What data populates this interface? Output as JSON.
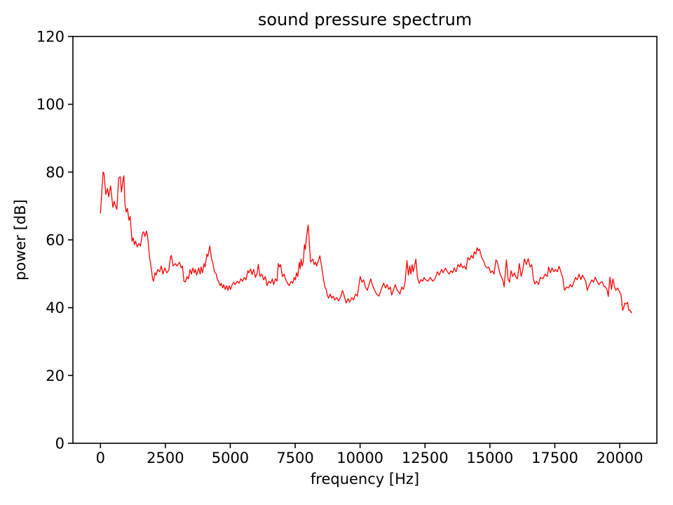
{
  "figure": {
    "title": "sound pressure spectrum"
  },
  "chart_data": {
    "type": "line",
    "title": "sound pressure spectrum",
    "xlabel": "frequency [Hz]",
    "ylabel": "power [dB]",
    "xlim": [
      -1060,
      21430
    ],
    "ylim": [
      0,
      120
    ],
    "xticks": [
      0,
      2500,
      5000,
      7500,
      10000,
      12500,
      15000,
      17500,
      20000
    ],
    "yticks": [
      0,
      20,
      40,
      60,
      80,
      100,
      120
    ],
    "grid": false,
    "legend": "none",
    "line_color": "#ff0000",
    "axes_color": "#000000",
    "background": "#ffffff",
    "points": [
      [
        0,
        67.9
      ],
      [
        100,
        80.0
      ],
      [
        135,
        79.6
      ],
      [
        208,
        73.4
      ],
      [
        270,
        75.2
      ],
      [
        316,
        72.7
      ],
      [
        389,
        75.9
      ],
      [
        478,
        69.6
      ],
      [
        524,
        71.4
      ],
      [
        568,
        70.3
      ],
      [
        632,
        69.0
      ],
      [
        703,
        78.3
      ],
      [
        768,
        78.6
      ],
      [
        811,
        74.1
      ],
      [
        876,
        78.1
      ],
      [
        903,
        78.9
      ],
      [
        947,
        70.3
      ],
      [
        992,
        68.2
      ],
      [
        1037,
        69.3
      ],
      [
        1100,
        65.8
      ],
      [
        1145,
        66.9
      ],
      [
        1216,
        59.6
      ],
      [
        1260,
        60.6
      ],
      [
        1308,
        58.6
      ],
      [
        1352,
        59.6
      ],
      [
        1417,
        57.9
      ],
      [
        1486,
        58.9
      ],
      [
        1540,
        58.2
      ],
      [
        1622,
        62.0
      ],
      [
        1667,
        62.4
      ],
      [
        1712,
        61.0
      ],
      [
        1775,
        62.6
      ],
      [
        1830,
        60.3
      ],
      [
        1892,
        54.8
      ],
      [
        1938,
        52.7
      ],
      [
        2011,
        48.5
      ],
      [
        2046,
        47.8
      ],
      [
        2100,
        50.3
      ],
      [
        2146,
        49.6
      ],
      [
        2208,
        51.3
      ],
      [
        2281,
        50.6
      ],
      [
        2344,
        52.3
      ],
      [
        2406,
        49.9
      ],
      [
        2479,
        51.7
      ],
      [
        2552,
        50.3
      ],
      [
        2630,
        51.0
      ],
      [
        2703,
        55.1
      ],
      [
        2730,
        55.4
      ],
      [
        2795,
        52.3
      ],
      [
        2884,
        53.0
      ],
      [
        2950,
        52.3
      ],
      [
        3047,
        53.4
      ],
      [
        3110,
        51.7
      ],
      [
        3160,
        52.3
      ],
      [
        3217,
        47.8
      ],
      [
        3271,
        47.6
      ],
      [
        3335,
        49.2
      ],
      [
        3390,
        48.5
      ],
      [
        3451,
        51.3
      ],
      [
        3505,
        49.9
      ],
      [
        3560,
        51.7
      ],
      [
        3614,
        50.3
      ],
      [
        3650,
        51.3
      ],
      [
        3705,
        49.6
      ],
      [
        3784,
        51.7
      ],
      [
        3840,
        49.9
      ],
      [
        3876,
        52.0
      ],
      [
        3930,
        50.3
      ],
      [
        3992,
        53.0
      ],
      [
        4030,
        52.0
      ],
      [
        4100,
        55.8
      ],
      [
        4140,
        55.1
      ],
      [
        4209,
        58.2
      ],
      [
        4281,
        54.4
      ],
      [
        4335,
        53.0
      ],
      [
        4389,
        50.6
      ],
      [
        4460,
        49.9
      ],
      [
        4506,
        48.2
      ],
      [
        4550,
        47.8
      ],
      [
        4606,
        46.5
      ],
      [
        4650,
        47.2
      ],
      [
        4703,
        45.8
      ],
      [
        4750,
        46.8
      ],
      [
        4803,
        45.4
      ],
      [
        4857,
        46.5
      ],
      [
        4911,
        45.1
      ],
      [
        4957,
        46.5
      ],
      [
        5011,
        45.4
      ],
      [
        5073,
        46.8
      ],
      [
        5136,
        47.5
      ],
      [
        5182,
        46.8
      ],
      [
        5271,
        47.8
      ],
      [
        5340,
        47.2
      ],
      [
        5406,
        48.5
      ],
      [
        5470,
        47.8
      ],
      [
        5541,
        48.9
      ],
      [
        5605,
        48.2
      ],
      [
        5676,
        50.9
      ],
      [
        5720,
        50.3
      ],
      [
        5784,
        51.4
      ],
      [
        5840,
        49.8
      ],
      [
        5902,
        51.3
      ],
      [
        5970,
        48.9
      ],
      [
        6038,
        50.3
      ],
      [
        6082,
        52.8
      ],
      [
        6150,
        49.2
      ],
      [
        6217,
        49.9
      ],
      [
        6290,
        48.2
      ],
      [
        6352,
        49.2
      ],
      [
        6417,
        46.5
      ],
      [
        6490,
        47.8
      ],
      [
        6560,
        47.2
      ],
      [
        6620,
        48.5
      ],
      [
        6669,
        46.8
      ],
      [
        6740,
        48.5
      ],
      [
        6800,
        47.8
      ],
      [
        6850,
        53.0
      ],
      [
        6900,
        52.0
      ],
      [
        6940,
        52.7
      ],
      [
        7010,
        49.2
      ],
      [
        7075,
        49.9
      ],
      [
        7140,
        48.2
      ],
      [
        7209,
        47.2
      ],
      [
        7270,
        46.5
      ],
      [
        7344,
        47.8
      ],
      [
        7410,
        47.2
      ],
      [
        7462,
        48.9
      ],
      [
        7510,
        48.2
      ],
      [
        7552,
        50.3
      ],
      [
        7600,
        49.2
      ],
      [
        7660,
        53.4
      ],
      [
        7692,
        51.5
      ],
      [
        7732,
        54.4
      ],
      [
        7768,
        52.3
      ],
      [
        7815,
        53.6
      ],
      [
        7858,
        58.6
      ],
      [
        7894,
        57.2
      ],
      [
        7930,
        60.6
      ],
      [
        8002,
        64.4
      ],
      [
        8050,
        58.6
      ],
      [
        8093,
        53.4
      ],
      [
        8183,
        54.4
      ],
      [
        8237,
        52.7
      ],
      [
        8282,
        53.4
      ],
      [
        8327,
        52.3
      ],
      [
        8453,
        55.3
      ],
      [
        8516,
        52.3
      ],
      [
        8580,
        48.9
      ],
      [
        8640,
        46.1
      ],
      [
        8696,
        45.4
      ],
      [
        8740,
        43.7
      ],
      [
        8785,
        42.8
      ],
      [
        8850,
        44.0
      ],
      [
        8904,
        42.8
      ],
      [
        8967,
        43.4
      ],
      [
        9028,
        42.3
      ],
      [
        9100,
        43.0
      ],
      [
        9174,
        42.0
      ],
      [
        9264,
        43.4
      ],
      [
        9325,
        45.1
      ],
      [
        9390,
        43.4
      ],
      [
        9461,
        41.4
      ],
      [
        9533,
        42.7
      ],
      [
        9596,
        41.6
      ],
      [
        9687,
        43.0
      ],
      [
        9750,
        42.3
      ],
      [
        9822,
        44.0
      ],
      [
        9894,
        43.4
      ],
      [
        10003,
        49.2
      ],
      [
        10075,
        47.5
      ],
      [
        10138,
        48.2
      ],
      [
        10203,
        46.1
      ],
      [
        10273,
        45.1
      ],
      [
        10345,
        46.8
      ],
      [
        10408,
        48.5
      ],
      [
        10471,
        46.8
      ],
      [
        10543,
        45.4
      ],
      [
        10633,
        44.0
      ],
      [
        10724,
        43.4
      ],
      [
        10814,
        45.4
      ],
      [
        10905,
        47.2
      ],
      [
        10977,
        45.8
      ],
      [
        11040,
        46.8
      ],
      [
        11102,
        45.4
      ],
      [
        11165,
        46.1
      ],
      [
        11218,
        43.7
      ],
      [
        11282,
        45.1
      ],
      [
        11354,
        46.8
      ],
      [
        11426,
        45.1
      ],
      [
        11480,
        44.7
      ],
      [
        11534,
        44.0
      ],
      [
        11606,
        46.1
      ],
      [
        11670,
        45.4
      ],
      [
        11731,
        47.5
      ],
      [
        11804,
        53.9
      ],
      [
        11858,
        49.6
      ],
      [
        11912,
        52.3
      ],
      [
        11957,
        49.9
      ],
      [
        12002,
        52.7
      ],
      [
        12048,
        50.6
      ],
      [
        12147,
        54.3
      ],
      [
        12210,
        48.9
      ],
      [
        12274,
        47.2
      ],
      [
        12346,
        48.3
      ],
      [
        12412,
        47.8
      ],
      [
        12463,
        48.9
      ],
      [
        12525,
        48.2
      ],
      [
        12615,
        47.8
      ],
      [
        12705,
        48.9
      ],
      [
        12796,
        47.8
      ],
      [
        12886,
        48.5
      ],
      [
        12976,
        50.6
      ],
      [
        13048,
        49.6
      ],
      [
        13138,
        51.3
      ],
      [
        13202,
        50.3
      ],
      [
        13290,
        51.7
      ],
      [
        13360,
        50.6
      ],
      [
        13428,
        49.9
      ],
      [
        13500,
        50.9
      ],
      [
        13563,
        50.3
      ],
      [
        13626,
        51.7
      ],
      [
        13698,
        50.6
      ],
      [
        13770,
        52.7
      ],
      [
        13840,
        52.0
      ],
      [
        13878,
        53.0
      ],
      [
        13950,
        51.7
      ],
      [
        14013,
        52.3
      ],
      [
        14080,
        51.3
      ],
      [
        14148,
        54.8
      ],
      [
        14215,
        54.1
      ],
      [
        14283,
        55.4
      ],
      [
        14350,
        54.6
      ],
      [
        14400,
        56.5
      ],
      [
        14455,
        55.8
      ],
      [
        14508,
        57.7
      ],
      [
        14553,
        56.8
      ],
      [
        14598,
        57.3
      ],
      [
        14680,
        54.8
      ],
      [
        14760,
        53.7
      ],
      [
        14820,
        52.3
      ],
      [
        14887,
        51.7
      ],
      [
        14960,
        52.0
      ],
      [
        15032,
        50.3
      ],
      [
        15096,
        50.9
      ],
      [
        15159,
        49.9
      ],
      [
        15231,
        54.1
      ],
      [
        15290,
        53.4
      ],
      [
        15321,
        52.3
      ],
      [
        15390,
        49.9
      ],
      [
        15456,
        48.9
      ],
      [
        15510,
        47.8
      ],
      [
        15547,
        46.1
      ],
      [
        15637,
        54.1
      ],
      [
        15700,
        48.5
      ],
      [
        15754,
        47.5
      ],
      [
        15817,
        50.9
      ],
      [
        15880,
        49.2
      ],
      [
        15940,
        50.3
      ],
      [
        16000,
        49.0
      ],
      [
        16060,
        48.5
      ],
      [
        16132,
        53.0
      ],
      [
        16204,
        49.2
      ],
      [
        16267,
        51.3
      ],
      [
        16330,
        54.4
      ],
      [
        16402,
        52.7
      ],
      [
        16475,
        54.5
      ],
      [
        16547,
        52.0
      ],
      [
        16610,
        52.7
      ],
      [
        16672,
        48.5
      ],
      [
        16730,
        47.0
      ],
      [
        16800,
        47.8
      ],
      [
        16870,
        46.8
      ],
      [
        16944,
        48.9
      ],
      [
        17034,
        48.5
      ],
      [
        17124,
        49.9
      ],
      [
        17214,
        49.2
      ],
      [
        17259,
        52.0
      ],
      [
        17330,
        50.3
      ],
      [
        17395,
        51.7
      ],
      [
        17465,
        50.6
      ],
      [
        17530,
        51.3
      ],
      [
        17600,
        50.6
      ],
      [
        17666,
        52.2
      ],
      [
        17730,
        50.6
      ],
      [
        17801,
        48.9
      ],
      [
        17873,
        45.1
      ],
      [
        17950,
        46.1
      ],
      [
        18026,
        45.8
      ],
      [
        18096,
        46.8
      ],
      [
        18161,
        46.1
      ],
      [
        18230,
        47.5
      ],
      [
        18296,
        48.9
      ],
      [
        18365,
        48.2
      ],
      [
        18431,
        49.9
      ],
      [
        18500,
        48.3
      ],
      [
        18566,
        49.6
      ],
      [
        18640,
        48.5
      ],
      [
        18700,
        47.5
      ],
      [
        18746,
        45.1
      ],
      [
        18835,
        46.8
      ],
      [
        18926,
        48.2
      ],
      [
        18990,
        47.5
      ],
      [
        19053,
        49.0
      ],
      [
        19125,
        47.8
      ],
      [
        19197,
        46.8
      ],
      [
        19270,
        47.5
      ],
      [
        19330,
        47.6
      ],
      [
        19377,
        46.5
      ],
      [
        19450,
        46.1
      ],
      [
        19510,
        45.4
      ],
      [
        19558,
        43.3
      ],
      [
        19620,
        49.0
      ],
      [
        19680,
        45.4
      ],
      [
        19738,
        48.5
      ],
      [
        19800,
        46.1
      ],
      [
        19850,
        45.1
      ],
      [
        19918,
        45.8
      ],
      [
        19990,
        44.7
      ],
      [
        20053,
        43.7
      ],
      [
        20110,
        39.2
      ],
      [
        20150,
        39.9
      ],
      [
        20188,
        41.3
      ],
      [
        20250,
        41.1
      ],
      [
        20300,
        41.6
      ],
      [
        20350,
        39.2
      ],
      [
        20400,
        39.3
      ],
      [
        20440,
        38.5
      ],
      [
        20460,
        38.7
      ]
    ]
  }
}
